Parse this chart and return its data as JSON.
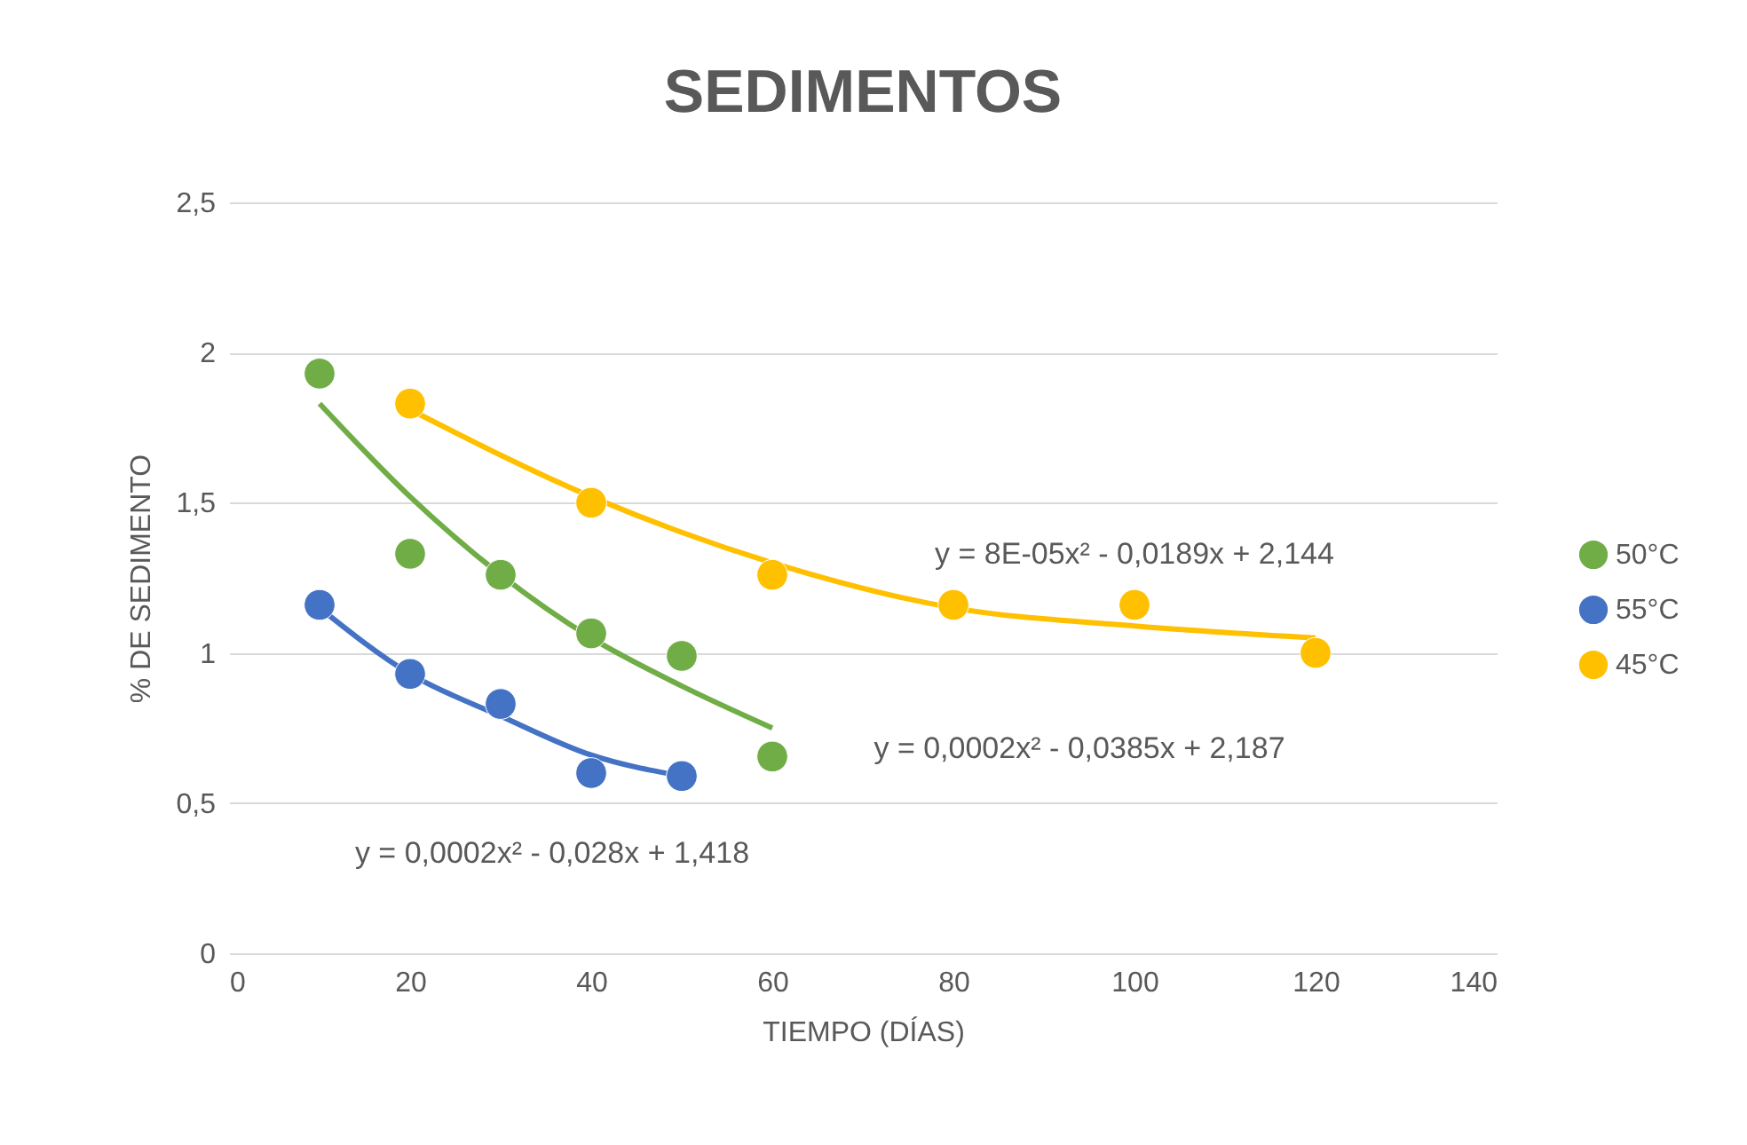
{
  "chart_data": {
    "type": "scatter",
    "title": "SEDIMENTOS",
    "xlabel": "TIEMPO (DÍAS)",
    "ylabel": "% DE SEDIMENTO",
    "xlim": [
      0,
      140
    ],
    "xticks": [
      0,
      20,
      40,
      60,
      80,
      100,
      120,
      140
    ],
    "ylim": [
      0,
      2.5
    ],
    "yticks": [
      0,
      {
        "value": 0.5,
        "label": "0,5"
      },
      1,
      {
        "value": 1.5,
        "label": "1,5"
      },
      2,
      {
        "value": 2.5,
        "label": "2,5"
      }
    ],
    "grid": "y",
    "legend": "right",
    "marker": "circle",
    "series": [
      {
        "name": "50°C",
        "color": "#70ad47",
        "x": [
          10,
          20,
          30,
          40,
          50,
          60
        ],
        "values": [
          1.93,
          1.33,
          1.26,
          1.065,
          0.99,
          0.655
        ]
      },
      {
        "name": "55°C",
        "color": "#4472c4",
        "x": [
          10,
          20,
          30,
          40,
          50
        ],
        "values": [
          1.16,
          0.93,
          0.83,
          0.6,
          0.59
        ]
      },
      {
        "name": "45°C",
        "color": "#ffc000",
        "x": [
          20,
          40,
          60,
          80,
          100,
          120
        ],
        "values": [
          1.83,
          1.5,
          1.26,
          1.16,
          1.16,
          1.0
        ]
      },
      {
        "type": "line",
        "marker": "none",
        "color": "#70ad47",
        "x": [
          10,
          20,
          30,
          40,
          50,
          60
        ],
        "values": [
          1.83,
          1.52,
          1.26,
          1.05,
          0.89,
          0.75
        ]
      },
      {
        "type": "line",
        "marker": "none",
        "color": "#4472c4",
        "x": [
          10,
          20,
          30,
          40,
          50
        ],
        "values": [
          1.15,
          0.93,
          0.79,
          0.66,
          0.59
        ]
      },
      {
        "type": "line",
        "marker": "none",
        "color": "#ffc000",
        "x": [
          20,
          40,
          60,
          80,
          100,
          120
        ],
        "values": [
          1.81,
          1.52,
          1.3,
          1.15,
          1.09,
          1.05
        ]
      }
    ],
    "annotations": [
      "y = 0,0002x² - 0,0385x + 2,187",
      "y = 0,0002x² - 0,028x + 1,418",
      "y = 8E-05x² - 0,0189x + 2,144"
    ]
  }
}
